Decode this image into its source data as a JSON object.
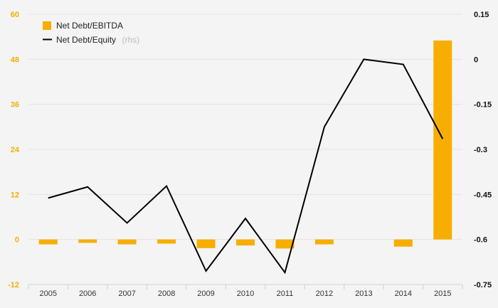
{
  "colors": {
    "bar": "#f7ae00",
    "line": "#000000",
    "grid": "#e3e3e3",
    "background": "#f4f4f4",
    "left_axis_text": "#f4ae00",
    "right_axis_text": "#111111"
  },
  "legend": {
    "items": [
      {
        "label": "Net Debt/EBITDA",
        "suffix": ""
      },
      {
        "label": "Net Debt/Equity",
        "suffix": "(rhs)"
      }
    ]
  },
  "chart_data": {
    "type": "bar",
    "categories": [
      "2005",
      "2006",
      "2007",
      "2008",
      "2009",
      "2010",
      "2011",
      "2012",
      "2013",
      "2014",
      "2015"
    ],
    "series": [
      {
        "name": "Net Debt/EBITDA",
        "type": "bar",
        "axis": "left",
        "values": [
          -1.3,
          -0.9,
          -1.3,
          -1.1,
          -2.3,
          -1.6,
          -2.4,
          -1.3,
          0,
          -1.9,
          53
        ]
      },
      {
        "name": "Net Debt/Equity",
        "type": "line",
        "axis": "right",
        "values": [
          -0.462,
          -0.425,
          -0.545,
          -0.422,
          -0.705,
          -0.53,
          -0.71,
          -0.225,
          0.0,
          -0.017,
          -0.265
        ]
      }
    ],
    "y_left": {
      "ylim": [
        -12,
        60
      ],
      "ticks": [
        -12,
        0,
        12,
        24,
        36,
        48,
        60
      ]
    },
    "y_right": {
      "ylim": [
        -0.75,
        0.15
      ],
      "ticks": [
        -0.75,
        -0.6,
        -0.45,
        -0.3,
        -0.15,
        0,
        0.15
      ]
    },
    "grid": true,
    "legend_position": "top-left"
  }
}
